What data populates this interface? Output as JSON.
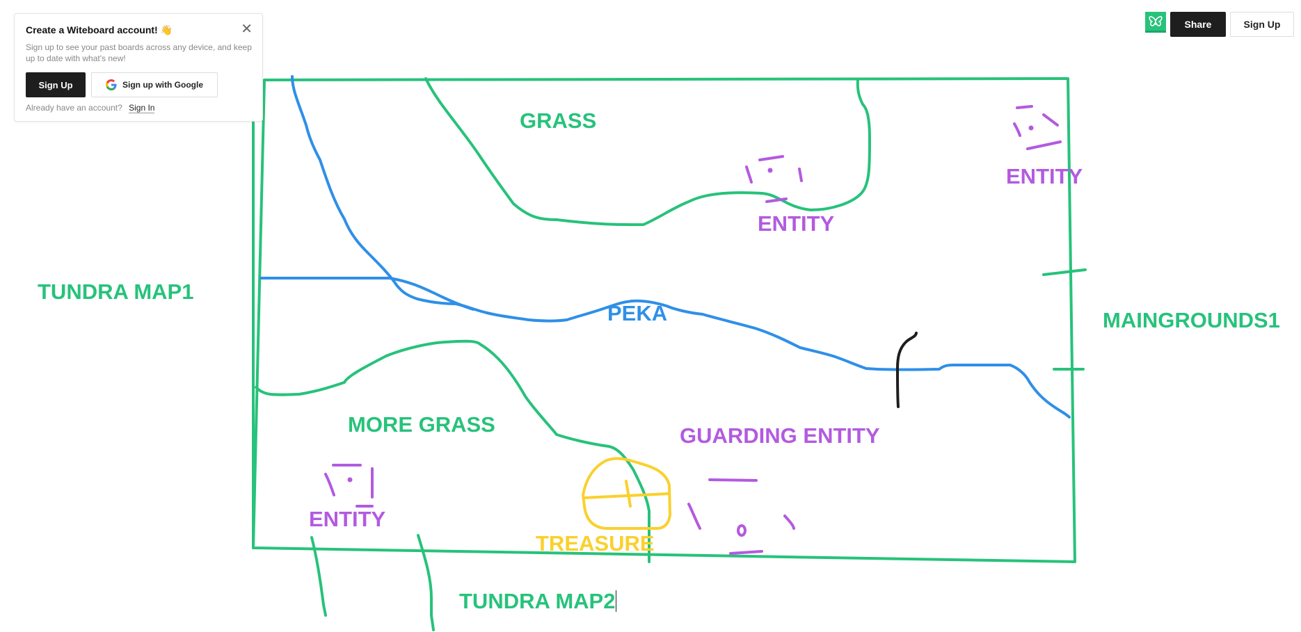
{
  "popup": {
    "title": "Create a Witeboard account! 👋",
    "description": "Sign up to see your past boards across any device, and keep up to date with what's new!",
    "signup_label": "Sign Up",
    "google_label": "Sign up with Google",
    "already_text": "Already have an account?",
    "signin_label": "Sign In",
    "close_glyph": "✕"
  },
  "toolbar": {
    "share_label": "Share",
    "signup_label": "Sign Up",
    "logo_icon": "butterfly-icon"
  },
  "canvas": {
    "labels": {
      "grass": "GRASS",
      "entity_top_center": "ENTITY",
      "entity_top_right": "ENTITY",
      "tundra_map1": "TUNDRA MAP1",
      "peka": "PEKA",
      "maingrounds1": "MAINGROUNDS1",
      "more_grass": "MORE GRASS",
      "guarding_entity": "GUARDING ENTITY",
      "entity_bottom_left": "ENTITY",
      "treasure": "TREASURE",
      "tundra_map2": "TUNDRA MAP2"
    },
    "colors": {
      "green": "#27c27b",
      "purple": "#b35ae0",
      "blue": "#2f8fe8",
      "yellow": "#fad02c",
      "black": "#1e1e1e"
    }
  }
}
